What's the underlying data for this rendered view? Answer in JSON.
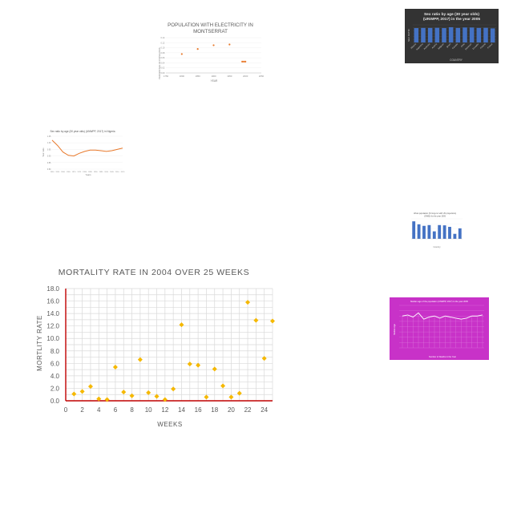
{
  "chart_data": [
    {
      "id": "electricity",
      "type": "scatter",
      "title": "POPULATION WITH ELECTRICITY IN MONTSERRAT",
      "title_lines": [
        "POPULATION WITH ELECTRICITY IN",
        "MONTSERRAT"
      ],
      "xlabel": "YEAR",
      "ylabel": "PERCENTAGE OF POPULATION",
      "xlim": [
        1750,
        2000
      ],
      "ylim": [
        0,
        0.14
      ],
      "xticks": [
        "1750",
        "1800",
        "1850",
        "1900",
        "1950",
        "2000",
        "2050"
      ],
      "yticks": [
        "0.00",
        "0.02",
        "0.04",
        "0.06",
        "0.08",
        "0.10",
        "0.12",
        "0.14"
      ],
      "x": [
        1800,
        1850,
        1900,
        1950,
        1990,
        1995,
        2000
      ],
      "y": [
        0.075,
        0.095,
        0.11,
        0.113,
        0.045,
        0.045,
        0.045
      ],
      "color": "#e8792b"
    },
    {
      "id": "sexratio2005",
      "type": "bar",
      "title": "Sex ratio by age (30 year olds) (UNWPP, 2017) in the year 2005",
      "title_lines": [
        "Sex ratio by age (30 year olds)",
        "(UNWPP, 2017) in the year 2005"
      ],
      "xlabel": "COUNTRY",
      "ylabel": "SEX RATIO",
      "categories": [
        "Albania",
        "Argentina",
        "Australia",
        "Austria",
        "Belgium",
        "Brazil",
        "Canada",
        "Chile",
        "Denmark",
        "Ecuador",
        "Finland",
        "France"
      ],
      "values": [
        0.98,
        0.99,
        0.99,
        1.0,
        0.98,
        1.04,
        0.99,
        1.02,
        1.02,
        0.99,
        1.0,
        0.96
      ],
      "ylim": [
        0,
        1.2
      ],
      "background": "#333333",
      "color": "#4472c4"
    },
    {
      "id": "sexratioNigeria",
      "type": "line",
      "title": "Sex ratio by age (30 year olds) (UNWPP, 2017) in Nigeria",
      "xlabel": "Years",
      "ylabel": "Sex ratio",
      "xticks": [
        "1950",
        "1955",
        "1960",
        "1965",
        "1970",
        "1975",
        "1980",
        "1985",
        "1990",
        "1995",
        "2000",
        "2005",
        "2010",
        "2015"
      ],
      "yticks": [
        "0.80",
        "0.85",
        "0.90",
        "0.95",
        "1.00",
        "1.05"
      ],
      "x": [
        1950,
        1955,
        1960,
        1965,
        1970,
        1975,
        1980,
        1985,
        1990,
        1995,
        2000,
        2005,
        2010,
        2015
      ],
      "y": [
        1.02,
        0.98,
        0.93,
        0.905,
        0.9,
        0.92,
        0.935,
        0.945,
        0.945,
        0.94,
        0.935,
        0.94,
        0.95,
        0.96
      ],
      "ylim": [
        0.8,
        1.05
      ],
      "color": "#e8792b"
    },
    {
      "id": "smallbars",
      "type": "bar",
      "title": "Urban population (% long-run with UN projections) (OWID) for the year 2005",
      "title_lines": [
        "Urban population (% long-run with UN projections)",
        "(OWID) for the year 2005"
      ],
      "xlabel": "Country",
      "categories": [
        "A",
        "B",
        "C",
        "D",
        "E",
        "F",
        "G",
        "H",
        "I",
        "J"
      ],
      "values": [
        70,
        58,
        52,
        55,
        30,
        55,
        54,
        48,
        20,
        42
      ],
      "ylim": [
        0,
        80
      ],
      "color": "#4472c4"
    },
    {
      "id": "mortality",
      "type": "scatter",
      "title": "MORTALITY RATE IN 2004 OVER 25 WEEKS",
      "xlabel": "WEEKS",
      "ylabel": "MORTLITY RATE",
      "xlim": [
        0,
        25
      ],
      "ylim": [
        0,
        18
      ],
      "xticks": [
        "0",
        "2",
        "4",
        "6",
        "8",
        "10",
        "12",
        "14",
        "16",
        "18",
        "20",
        "22",
        "24"
      ],
      "yticks": [
        "0.0",
        "2.0",
        "4.0",
        "6.0",
        "8.0",
        "10.0",
        "12.0",
        "14.0",
        "16.0",
        "18.0"
      ],
      "x": [
        1,
        2,
        3,
        4,
        5,
        6,
        7,
        8,
        9,
        10,
        11,
        12,
        13,
        14,
        15,
        16,
        17,
        18,
        19,
        20,
        21,
        22,
        23,
        24,
        25
      ],
      "y": [
        1.1,
        1.5,
        2.3,
        0.3,
        0.2,
        5.4,
        1.4,
        0.8,
        6.6,
        1.3,
        0.7,
        0.2,
        1.9,
        12.2,
        5.9,
        5.7,
        0.6,
        5.1,
        2.4,
        0.6,
        1.2,
        15.8,
        12.9,
        6.8,
        12.8
      ],
      "color": "#f5b800"
    },
    {
      "id": "magenta",
      "type": "line",
      "title": "Median age of the population (UNWPP, 2017) in the year 2005",
      "xlabel": "Number of Deaths in the Year",
      "ylabel": "Median Age",
      "x": [
        1,
        2,
        3,
        4,
        5,
        6,
        7,
        8,
        9,
        10,
        11,
        12,
        13,
        14,
        15,
        16
      ],
      "y": [
        30,
        31,
        29,
        33,
        27,
        29,
        30,
        28,
        30,
        29,
        28,
        27,
        28,
        30,
        30,
        31
      ],
      "ylim": [
        0,
        40
      ],
      "background": "#c832c8",
      "color": "#ffffff"
    }
  ]
}
